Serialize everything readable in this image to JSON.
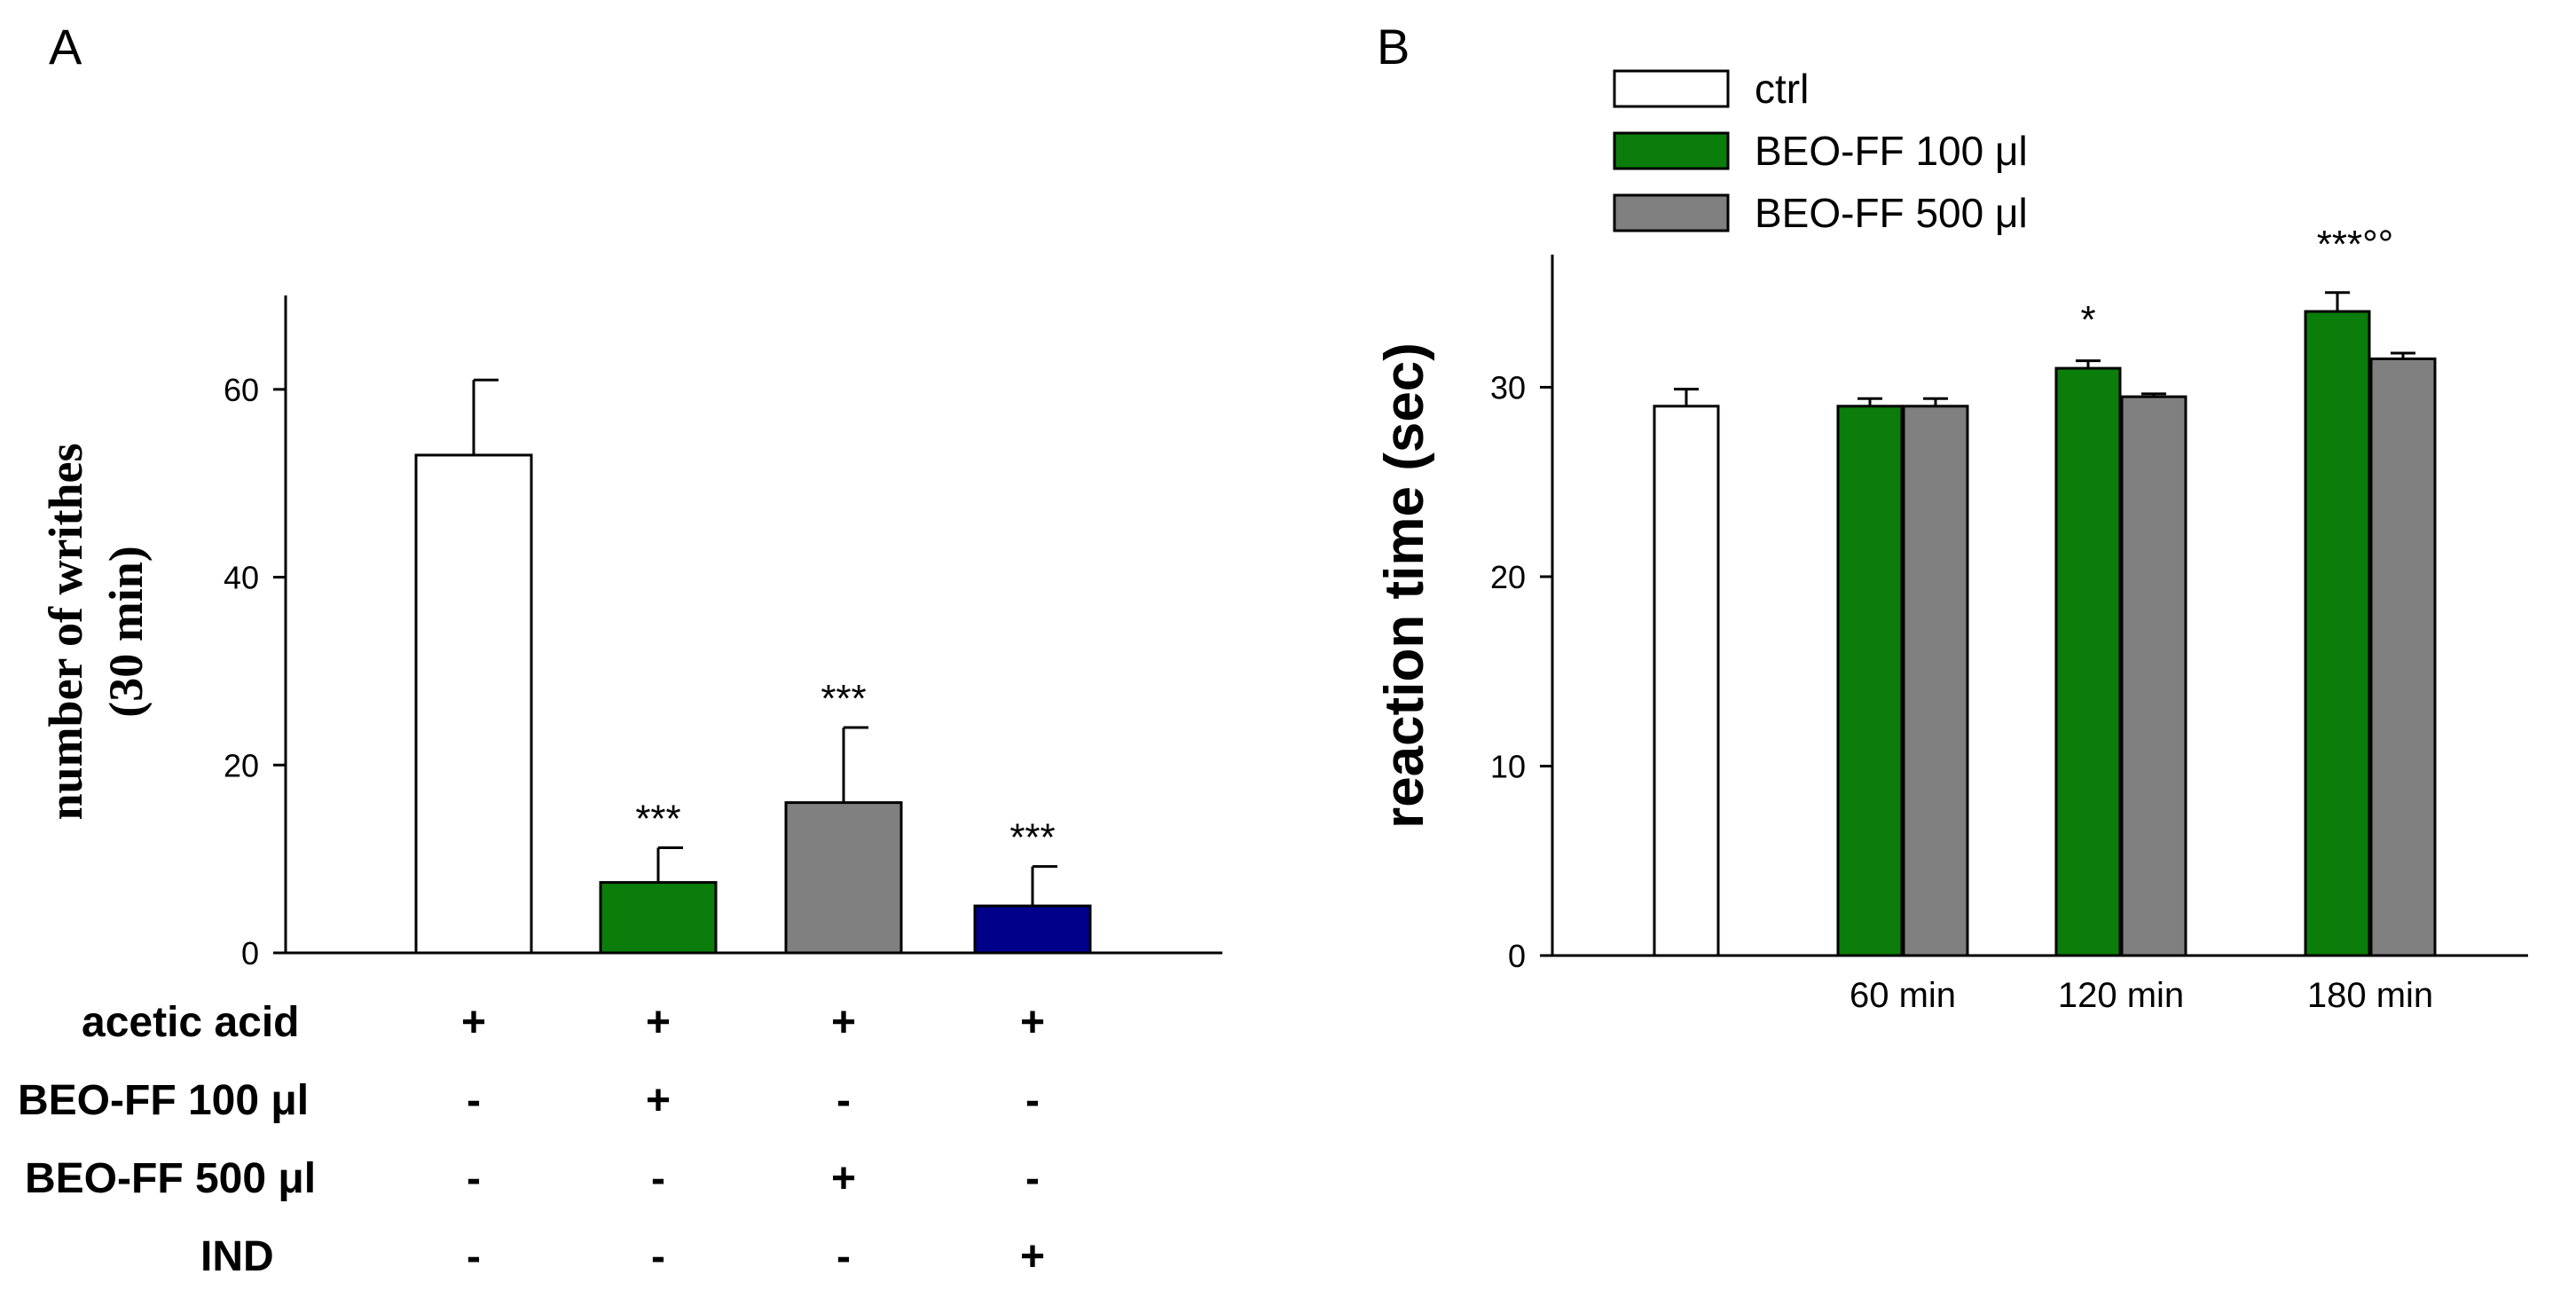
{
  "panel_a": {
    "letter": "A",
    "row_labels": [
      "acetic acid",
      "BEO-FF 100 μl",
      "BEO-FF 500 μl",
      "IND"
    ],
    "conditions": [
      [
        "+",
        "-",
        "-",
        "-"
      ],
      [
        "+",
        "+",
        "-",
        "-"
      ],
      [
        "+",
        "-",
        "+",
        "-"
      ],
      [
        "+",
        "-",
        "-",
        "+"
      ]
    ],
    "colors": {
      "white": "#ffffff",
      "green": "#0a7d0a",
      "gray": "#808080",
      "navy": "#00008b"
    }
  },
  "panel_b": {
    "letter": "B",
    "legend": [
      {
        "label": "ctrl",
        "color": "#ffffff"
      },
      {
        "label": "BEO-FF 100 μl",
        "color": "#0a7d0a"
      },
      {
        "label": "BEO-FF 500 μl",
        "color": "#808080"
      }
    ]
  },
  "chart_data": [
    {
      "type": "bar",
      "panel": "A",
      "ylabel": "number of writhes (30 min)",
      "ylabel_lines": [
        "number of writhes",
        "(30 min)"
      ],
      "ylim": [
        0,
        70
      ],
      "yticks": [
        "0",
        "20",
        "40",
        "60"
      ],
      "bars": [
        {
          "value": 53,
          "error": 8,
          "color": "#ffffff",
          "annotation": ""
        },
        {
          "value": 7.5,
          "error": 3.7,
          "color": "#0a7d0a",
          "annotation": "***"
        },
        {
          "value": 16,
          "error": 8,
          "color": "#808080",
          "annotation": "***"
        },
        {
          "value": 5,
          "error": 4.2,
          "color": "#00008b",
          "annotation": "***"
        }
      ]
    },
    {
      "type": "bar",
      "panel": "B",
      "ylabel": "reaction time (sec)",
      "ylim": [
        0,
        37
      ],
      "yticks": [
        "0",
        "10",
        "20",
        "30"
      ],
      "categories": [
        "",
        "60 min",
        "120 min",
        "180 min"
      ],
      "bars": [
        {
          "group": 0,
          "series": "ctrl",
          "value": 29,
          "error": 0.9,
          "color": "#ffffff"
        },
        {
          "group": 1,
          "series": "BEO-FF 100 μl",
          "value": 29,
          "error": 0.4,
          "color": "#0a7d0a"
        },
        {
          "group": 1,
          "series": "BEO-FF 500 μl",
          "value": 29,
          "error": 0.4,
          "color": "#808080"
        },
        {
          "group": 2,
          "series": "BEO-FF 100 μl",
          "value": 31,
          "error": 0.4,
          "color": "#0a7d0a"
        },
        {
          "group": 2,
          "series": "BEO-FF 500 μl",
          "value": 29.5,
          "error": 0.15,
          "color": "#808080"
        },
        {
          "group": 3,
          "series": "BEO-FF 100 μl",
          "value": 34,
          "error": 1.0,
          "color": "#0a7d0a"
        },
        {
          "group": 3,
          "series": "BEO-FF 500 μl",
          "value": 31.5,
          "error": 0.3,
          "color": "#808080"
        }
      ],
      "annotations": [
        {
          "group": 2,
          "text": "*"
        },
        {
          "group": 3,
          "text": "***°°"
        }
      ]
    }
  ]
}
